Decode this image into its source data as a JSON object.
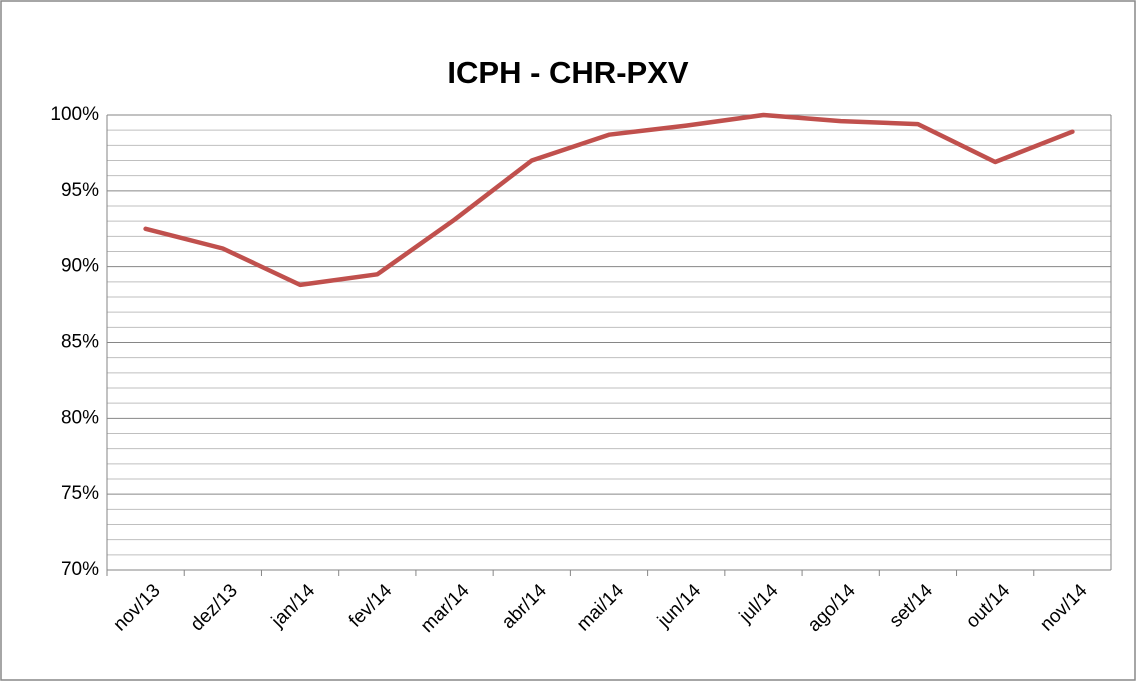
{
  "chart_data": {
    "type": "line",
    "title": "ICPH - CHR-PXV",
    "categories": [
      "nov/13",
      "dez/13",
      "jan/14",
      "fev/14",
      "mar/14",
      "abr/14",
      "mai/14",
      "jun/14",
      "jul/14",
      "ago/14",
      "set/14",
      "out/14",
      "nov/14"
    ],
    "series": [
      {
        "name": "ICPH",
        "color": "#c0504d",
        "values": [
          92.5,
          91.2,
          88.8,
          89.5,
          93.1,
          97.0,
          98.7,
          99.3,
          100.0,
          99.6,
          99.4,
          96.9,
          98.9
        ]
      }
    ],
    "ylim": [
      70,
      100
    ],
    "yticks": [
      {
        "value": 70,
        "label": "70%"
      },
      {
        "value": 75,
        "label": "75%"
      },
      {
        "value": 80,
        "label": "80%"
      },
      {
        "value": 85,
        "label": "85%"
      },
      {
        "value": 90,
        "label": "90%"
      },
      {
        "value": 95,
        "label": "95%"
      },
      {
        "value": 100,
        "label": "100%"
      }
    ],
    "grid": true,
    "minor_grid": true,
    "legend": false
  }
}
